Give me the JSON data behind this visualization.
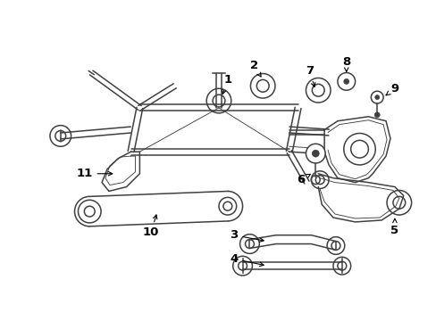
{
  "bg_color": "#ffffff",
  "line_color": "#404040",
  "text_color": "#000000",
  "fig_width": 4.89,
  "fig_height": 3.6,
  "dpi": 100,
  "lw_main": 1.1,
  "lw_thin": 0.65,
  "lw_thick": 1.6
}
